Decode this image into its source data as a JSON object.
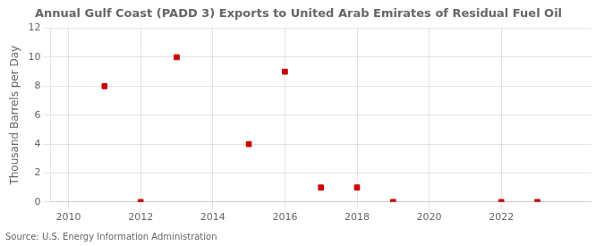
{
  "chart_data": {
    "type": "scatter",
    "title": "Annual Gulf Coast (PADD 3) Exports to United Arab Emirates of Residual Fuel Oil",
    "ylabel": "Thousand Barrels per Day",
    "annotation": "Source: U.S. Energy Information Administration",
    "x": [
      2011,
      2012,
      2013,
      2015,
      2016,
      2017,
      2018,
      2019,
      2022,
      2023
    ],
    "values": [
      8,
      0,
      10,
      4,
      9,
      1,
      1,
      0,
      0,
      0
    ],
    "color": "#cc0000",
    "marker": "square",
    "xlim": [
      2009.5,
      2024.5
    ],
    "xticks": [
      2010,
      2012,
      2014,
      2016,
      2018,
      2020,
      2022
    ],
    "ylim": [
      0,
      12
    ],
    "yticks": [
      0,
      2,
      4,
      6,
      8,
      10,
      12
    ],
    "grid": true
  }
}
